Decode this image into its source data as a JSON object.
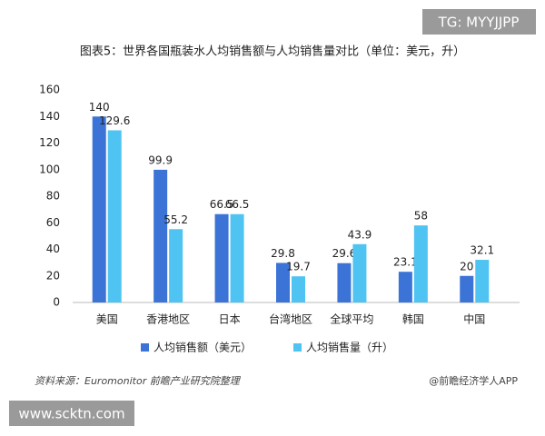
{
  "chart_data": {
    "type": "bar",
    "title": "图表5：世界各国瓶装水人均销售额与人均销售量对比（单位：美元，升）",
    "categories": [
      "美国",
      "香港地区",
      "日本",
      "台湾地区",
      "全球平均",
      "韩国",
      "中国"
    ],
    "series": [
      {
        "name": "人均销售额（美元）",
        "color": "#3b73d6",
        "values": [
          140,
          99.9,
          66.5,
          29.8,
          29.6,
          23.1,
          20
        ]
      },
      {
        "name": "人均销售量（升）",
        "color": "#4fc4f2",
        "values": [
          129.6,
          55.2,
          66.5,
          19.7,
          43.9,
          58,
          32.1
        ]
      }
    ],
    "ylim": [
      0,
      160
    ],
    "yticks": [
      0,
      20,
      40,
      60,
      80,
      100,
      120,
      140,
      160
    ],
    "grid": false,
    "legend": "bottom",
    "source": "资料来源：Euromonitor 前瞻产业研究院整理",
    "credit": "@前瞻经济学人APP"
  },
  "watermarks": [
    "TG: MYYJJPP",
    "www.scktn.com"
  ]
}
